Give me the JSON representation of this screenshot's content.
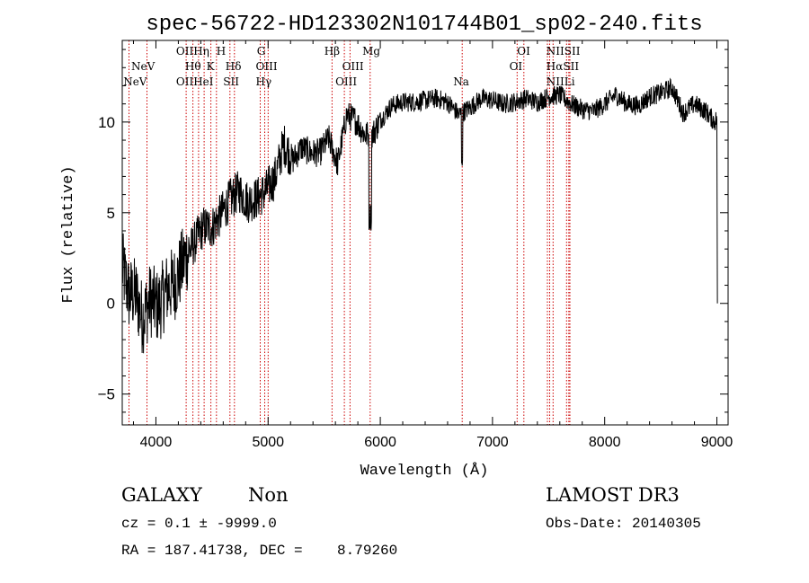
{
  "chart_data": {
    "type": "line",
    "title": "spec-56722-HD123302N101744B01_sp02-240.fits",
    "xlabel": "Wavelength (Å)",
    "ylabel": "Flux (relative)",
    "xlim": [
      3700,
      9100
    ],
    "ylim": [
      -6.7,
      14.5
    ],
    "xticks": [
      4000,
      5000,
      6000,
      7000,
      8000,
      9000
    ],
    "yticks": [
      -5,
      0,
      5,
      10
    ],
    "line_color": "#000000",
    "marker_color": "#cc0000",
    "grid": false,
    "series": [
      {
        "name": "flux",
        "x": [
          3700,
          3760,
          3820,
          3880,
          3950,
          4020,
          4100,
          4180,
          4260,
          4340,
          4420,
          4500,
          4580,
          4660,
          4740,
          4820,
          4900,
          4980,
          5060,
          5140,
          5220,
          5300,
          5380,
          5460,
          5540,
          5620,
          5700,
          5780,
          5860,
          5930,
          6000,
          6100,
          6200,
          6300,
          6400,
          6500,
          6600,
          6700,
          6800,
          6900,
          7000,
          7100,
          7200,
          7300,
          7400,
          7500,
          7600,
          7700,
          7800,
          7900,
          8000,
          8100,
          8200,
          8300,
          8400,
          8500,
          8600,
          8700,
          8800,
          8900,
          8980,
          9000
        ],
        "y": [
          2.0,
          0.5,
          0.5,
          -0.8,
          0.2,
          -0.2,
          0.8,
          1.2,
          2.5,
          3.3,
          4.2,
          4.2,
          4.9,
          5.7,
          6.2,
          5.6,
          5.8,
          6.2,
          6.9,
          8.8,
          7.9,
          8.6,
          8.3,
          8.3,
          9.1,
          7.7,
          10.4,
          10.1,
          9.3,
          9.3,
          10.1,
          10.9,
          11.1,
          11.1,
          11.2,
          11.3,
          11.1,
          10.4,
          10.8,
          11.3,
          11.2,
          11.0,
          11.1,
          11.3,
          11.1,
          11.4,
          11.5,
          11.0,
          10.7,
          10.6,
          11.0,
          11.5,
          11.0,
          10.9,
          11.4,
          11.6,
          11.9,
          10.5,
          11.0,
          10.6,
          10.0,
          10.2
        ]
      }
    ],
    "line_markers": [
      {
        "name": "NeV",
        "wl": 3760
      },
      {
        "name": "NeV",
        "wl": 3920
      },
      {
        "name": "OII",
        "wl": 4270
      },
      {
        "name": "Hη",
        "wl": 4330
      },
      {
        "name": "Hθ",
        "wl": 4380
      },
      {
        "name": "HeI",
        "wl": 4430
      },
      {
        "name": "K",
        "wl": 4490
      },
      {
        "name": "H",
        "wl": 4540
      },
      {
        "name": "Hδ",
        "wl": 4660
      },
      {
        "name": "SII",
        "wl": 4700
      },
      {
        "name": "G",
        "wl": 4930
      },
      {
        "name": "Hγ",
        "wl": 4970
      },
      {
        "name": "OIII",
        "wl": 5000
      },
      {
        "name": "Hβ",
        "wl": 5570
      },
      {
        "name": "OIII",
        "wl": 5680
      },
      {
        "name": "OIII",
        "wl": 5730
      },
      {
        "name": "Mg",
        "wl": 5910
      },
      {
        "name": "Na",
        "wl": 6730
      },
      {
        "name": "OI",
        "wl": 7220
      },
      {
        "name": "OI",
        "wl": 7280
      },
      {
        "name": "NII",
        "wl": 7490
      },
      {
        "name": "Hα",
        "wl": 7510
      },
      {
        "name": "NII",
        "wl": 7540
      },
      {
        "name": "SII",
        "wl": 7660
      },
      {
        "name": "SII",
        "wl": 7680
      },
      {
        "name": "Li",
        "wl": 7690
      }
    ],
    "line_labels": [
      {
        "text": "NeV",
        "wl": 3780,
        "row": 1
      },
      {
        "text": "NeV",
        "wl": 3710,
        "row": 2
      },
      {
        "text": "OIIHη",
        "wl": 4180,
        "row": 0
      },
      {
        "text": "H",
        "wl": 4540,
        "row": 0
      },
      {
        "text": "Hθ",
        "wl": 4260,
        "row": 1
      },
      {
        "text": "K",
        "wl": 4450,
        "row": 1
      },
      {
        "text": "Hδ",
        "wl": 4620,
        "row": 1
      },
      {
        "text": "OIIHeI",
        "wl": 4180,
        "row": 2
      },
      {
        "text": "SII",
        "wl": 4600,
        "row": 2
      },
      {
        "text": "G",
        "wl": 4900,
        "row": 0
      },
      {
        "text": "OIII",
        "wl": 4890,
        "row": 1
      },
      {
        "text": "Hγ",
        "wl": 4890,
        "row": 2
      },
      {
        "text": "Hβ",
        "wl": 5500,
        "row": 0
      },
      {
        "text": "OIII",
        "wl": 5660,
        "row": 1
      },
      {
        "text": "OIII",
        "wl": 5600,
        "row": 2
      },
      {
        "text": "Mg",
        "wl": 5840,
        "row": 0
      },
      {
        "text": "Na",
        "wl": 6650,
        "row": 2
      },
      {
        "text": "OI",
        "wl": 7220,
        "row": 0
      },
      {
        "text": "OI",
        "wl": 7150,
        "row": 1
      },
      {
        "text": "NIISII",
        "wl": 7480,
        "row": 0
      },
      {
        "text": "HαSII",
        "wl": 7480,
        "row": 1
      },
      {
        "text": "NII",
        "wl": 7480,
        "row": 2
      },
      {
        "text": "Li",
        "wl": 7640,
        "row": 2
      }
    ]
  },
  "info": {
    "object_class": "GALAXY",
    "subclass": "Non",
    "survey": "LAMOST DR3",
    "cz": "cz = 0.1 ± -9999.0",
    "obs_date": "Obs-Date: 20140305",
    "coords": "RA = 187.41738, DEC =    8.79260"
  }
}
